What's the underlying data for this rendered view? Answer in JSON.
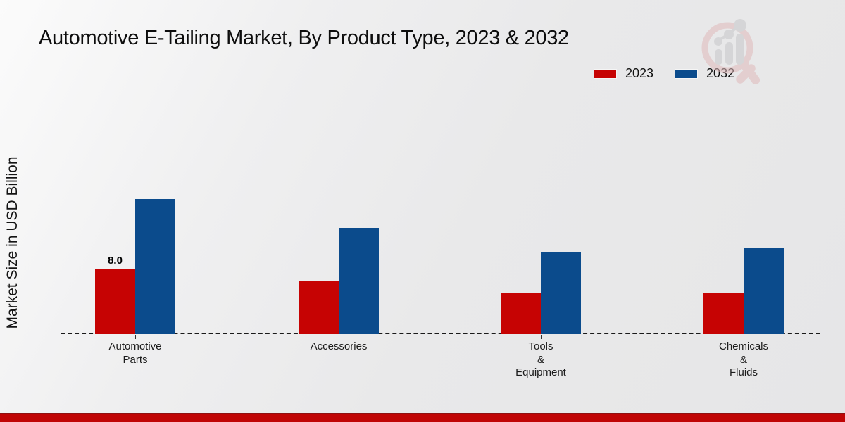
{
  "title": "Automotive E-Tailing Market, By Product Type, 2023 & 2032",
  "ylabel": "Market Size in USD Billion",
  "legend": {
    "items": [
      {
        "label": "2023",
        "color": "#c60303"
      },
      {
        "label": "2032",
        "color": "#0b4b8c"
      }
    ]
  },
  "colors": {
    "series_2023": "#c60303",
    "series_2032": "#0b4b8c",
    "bottom_band": "#c00505",
    "axis": "#1a1a1a"
  },
  "icons": {
    "watermark": "magnifier-bar-chart-logo"
  },
  "chart_data": {
    "type": "bar",
    "title": "Automotive E-Tailing Market, By Product Type, 2023 & 2032",
    "xlabel": "",
    "ylabel": "Market Size in USD Billion",
    "categories": [
      "Automotive Parts",
      "Accessories",
      "Tools & Equipment",
      "Chemicals & Fluids"
    ],
    "series": [
      {
        "name": "2023",
        "color": "#c60303",
        "values": [
          8.0,
          6.6,
          5.0,
          5.1
        ]
      },
      {
        "name": "2032",
        "color": "#0b4b8c",
        "values": [
          16.7,
          13.1,
          10.1,
          10.6
        ]
      }
    ],
    "value_labels": [
      {
        "series_index": 0,
        "category_index": 0,
        "text": "8.0"
      }
    ],
    "ylim": [
      0,
      18
    ],
    "grid": false,
    "y_axis_ticks_visible": false,
    "baseline_style": "dashed",
    "legend_position": "top-right"
  }
}
